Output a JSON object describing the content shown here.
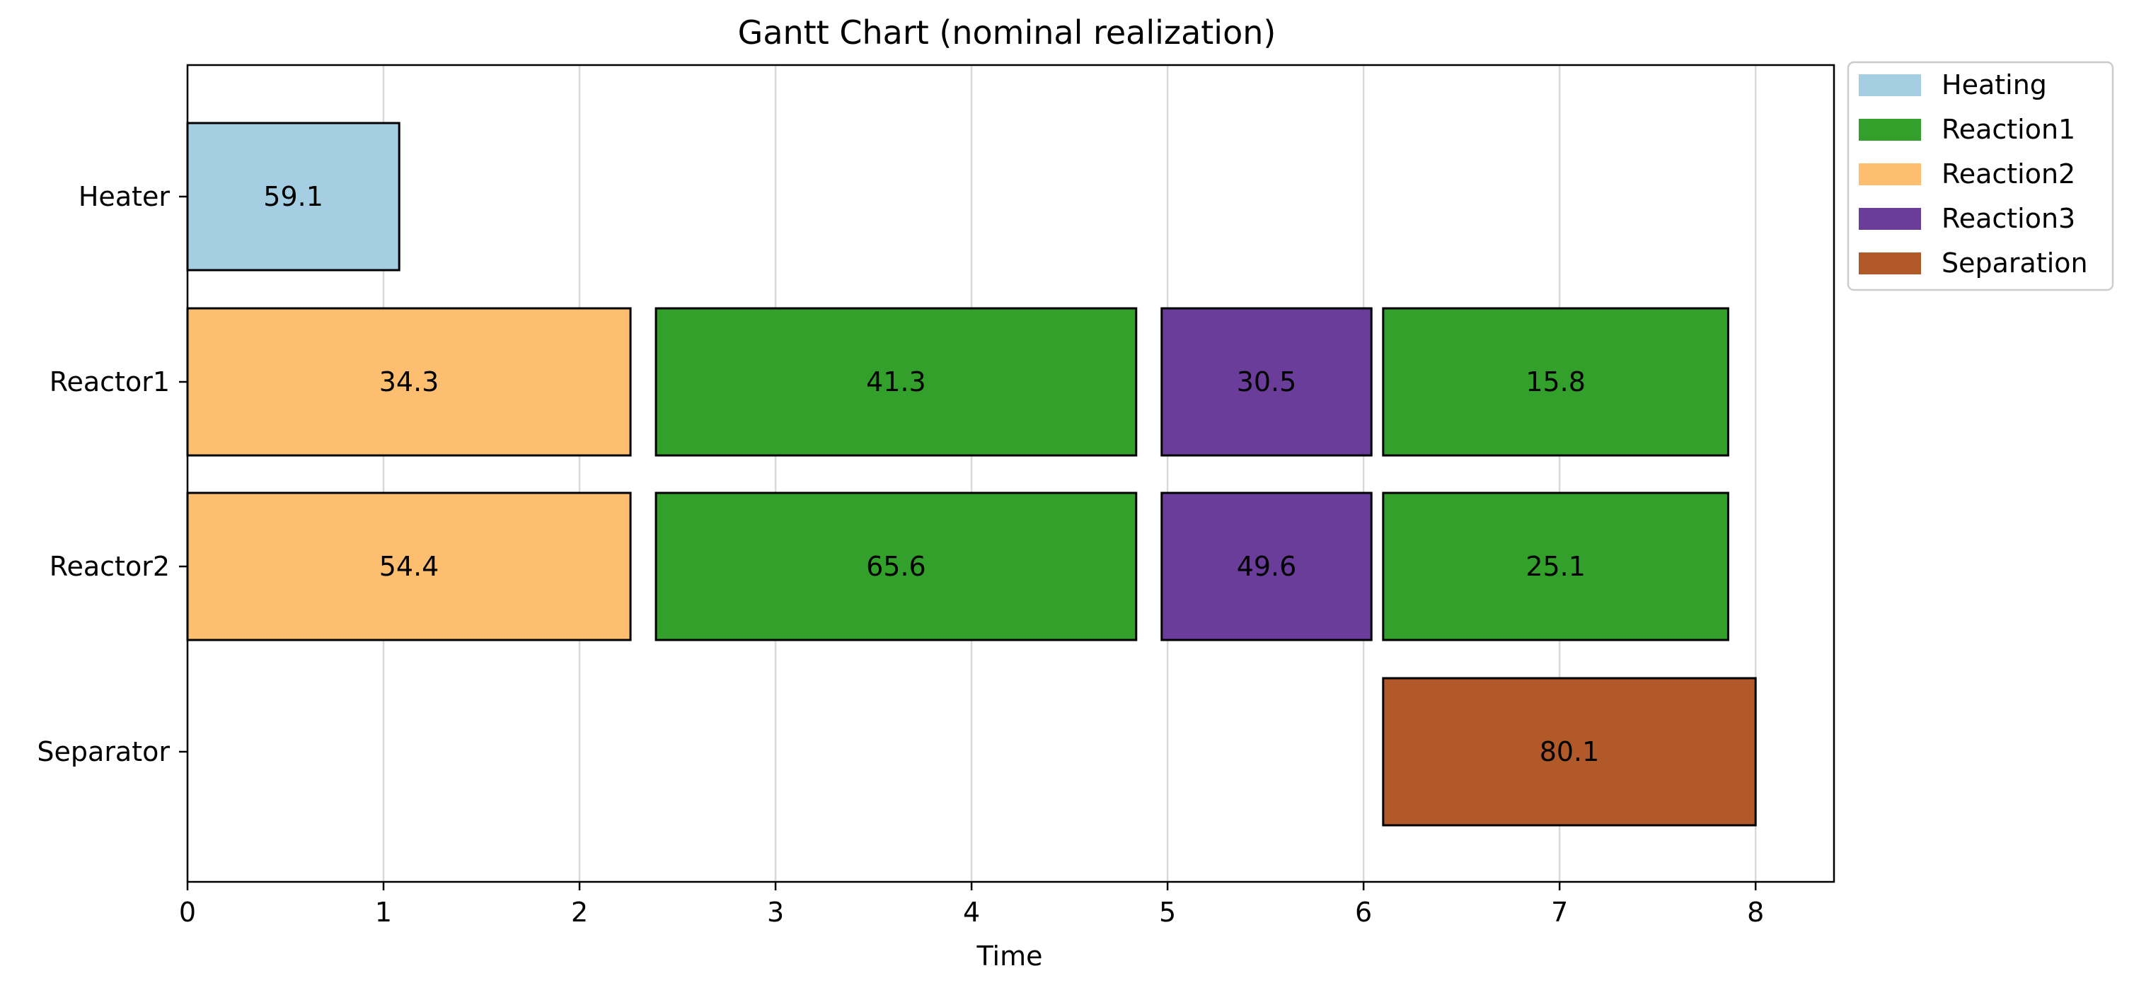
{
  "chart_data": {
    "type": "gantt",
    "title": "Gantt Chart (nominal realization)",
    "xlabel": "Time",
    "ylabel": "",
    "xlim": [
      0,
      8.4
    ],
    "xticks": [
      0,
      1,
      2,
      3,
      4,
      5,
      6,
      7,
      8
    ],
    "grid": "vertical",
    "legend_position": "outside-top-right",
    "units": [
      "Heater",
      "Reactor1",
      "Reactor2",
      "Separator"
    ],
    "categories": [
      {
        "name": "Heating",
        "color": "#a6cee3"
      },
      {
        "name": "Reaction1",
        "color": "#33a02c"
      },
      {
        "name": "Reaction2",
        "color": "#fdbf6f"
      },
      {
        "name": "Reaction3",
        "color": "#6a3d9a"
      },
      {
        "name": "Separation",
        "color": "#b15928"
      }
    ],
    "tasks": [
      {
        "unit": "Heater",
        "category": "Heating",
        "start": 0.0,
        "end": 1.08,
        "label": "59.1"
      },
      {
        "unit": "Reactor1",
        "category": "Reaction2",
        "start": 0.0,
        "end": 2.26,
        "label": "34.3"
      },
      {
        "unit": "Reactor1",
        "category": "Reaction1",
        "start": 2.39,
        "end": 4.84,
        "label": "41.3"
      },
      {
        "unit": "Reactor1",
        "category": "Reaction3",
        "start": 4.97,
        "end": 6.04,
        "label": "30.5"
      },
      {
        "unit": "Reactor1",
        "category": "Reaction1",
        "start": 6.1,
        "end": 7.86,
        "label": "15.8"
      },
      {
        "unit": "Reactor2",
        "category": "Reaction2",
        "start": 0.0,
        "end": 2.26,
        "label": "54.4"
      },
      {
        "unit": "Reactor2",
        "category": "Reaction1",
        "start": 2.39,
        "end": 4.84,
        "label": "65.6"
      },
      {
        "unit": "Reactor2",
        "category": "Reaction3",
        "start": 4.97,
        "end": 6.04,
        "label": "49.6"
      },
      {
        "unit": "Reactor2",
        "category": "Reaction1",
        "start": 6.1,
        "end": 7.86,
        "label": "25.1"
      },
      {
        "unit": "Separator",
        "category": "Separation",
        "start": 6.1,
        "end": 8.0,
        "label": "80.1"
      }
    ]
  }
}
